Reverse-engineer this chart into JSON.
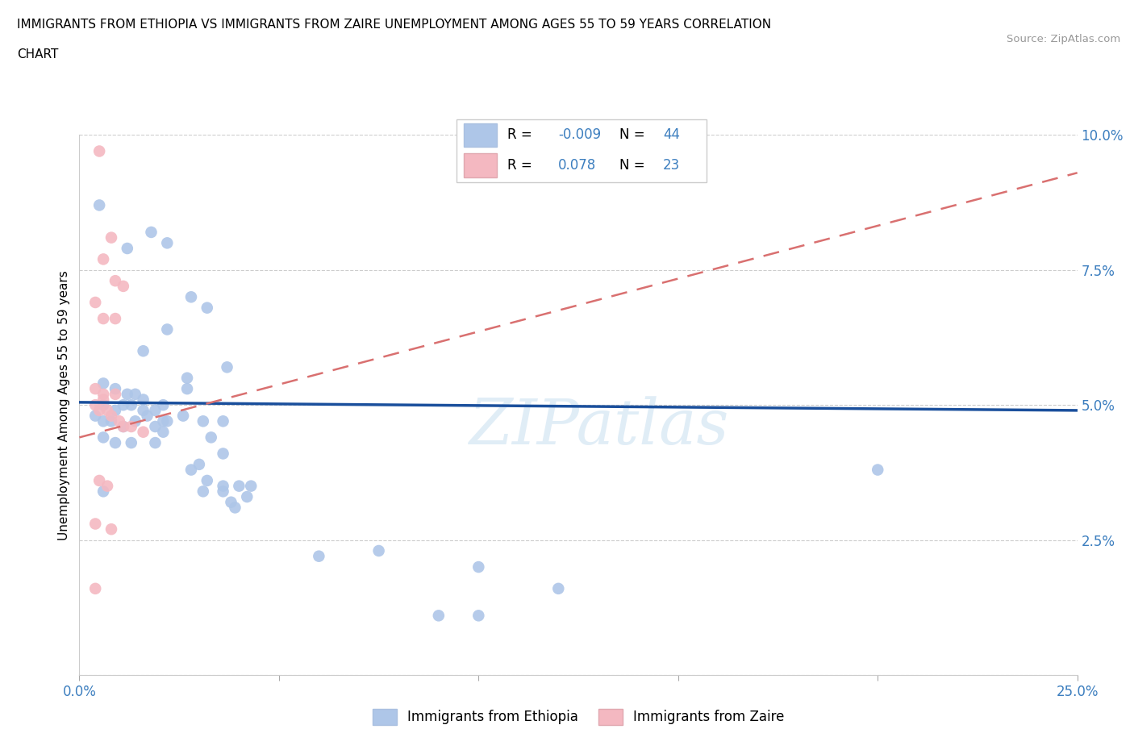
{
  "title_line1": "IMMIGRANTS FROM ETHIOPIA VS IMMIGRANTS FROM ZAIRE UNEMPLOYMENT AMONG AGES 55 TO 59 YEARS CORRELATION",
  "title_line2": "CHART",
  "source_text": "Source: ZipAtlas.com",
  "watermark": "ZIPatlas",
  "ylabel": "Unemployment Among Ages 55 to 59 years",
  "xlim": [
    0.0,
    0.25
  ],
  "ylim": [
    0.0,
    0.1
  ],
  "xticks": [
    0.0,
    0.05,
    0.1,
    0.15,
    0.2,
    0.25
  ],
  "yticks": [
    0.0,
    0.025,
    0.05,
    0.075,
    0.1
  ],
  "xticklabels": [
    "0.0%",
    "",
    "",
    "",
    "",
    "25.0%"
  ],
  "yticklabels": [
    "",
    "2.5%",
    "5.0%",
    "7.5%",
    "10.0%"
  ],
  "legend_labels": [
    "Immigrants from Ethiopia",
    "Immigrants from Zaire"
  ],
  "ethiopia_color": "#aec6e8",
  "zaire_color": "#f4b8c1",
  "ethiopia_line_color": "#1a4f9c",
  "zaire_line_color": "#d97070",
  "ethiopia_line": [
    [
      0.0,
      0.0505
    ],
    [
      0.25,
      0.049
    ]
  ],
  "zaire_line": [
    [
      0.0,
      0.044
    ],
    [
      0.25,
      0.093
    ]
  ],
  "ethiopia_points": [
    [
      0.005,
      0.087
    ],
    [
      0.012,
      0.079
    ],
    [
      0.018,
      0.082
    ],
    [
      0.022,
      0.08
    ],
    [
      0.028,
      0.07
    ],
    [
      0.032,
      0.068
    ],
    [
      0.022,
      0.064
    ],
    [
      0.016,
      0.06
    ],
    [
      0.037,
      0.057
    ],
    [
      0.027,
      0.055
    ],
    [
      0.006,
      0.054
    ],
    [
      0.009,
      0.053
    ],
    [
      0.012,
      0.052
    ],
    [
      0.014,
      0.052
    ],
    [
      0.027,
      0.053
    ],
    [
      0.016,
      0.051
    ],
    [
      0.006,
      0.05
    ],
    [
      0.009,
      0.049
    ],
    [
      0.011,
      0.05
    ],
    [
      0.013,
      0.05
    ],
    [
      0.016,
      0.049
    ],
    [
      0.019,
      0.049
    ],
    [
      0.021,
      0.05
    ],
    [
      0.004,
      0.048
    ],
    [
      0.006,
      0.047
    ],
    [
      0.008,
      0.047
    ],
    [
      0.011,
      0.046
    ],
    [
      0.014,
      0.047
    ],
    [
      0.017,
      0.048
    ],
    [
      0.021,
      0.047
    ],
    [
      0.026,
      0.048
    ],
    [
      0.031,
      0.047
    ],
    [
      0.036,
      0.047
    ],
    [
      0.022,
      0.047
    ],
    [
      0.019,
      0.046
    ],
    [
      0.021,
      0.045
    ],
    [
      0.006,
      0.044
    ],
    [
      0.009,
      0.043
    ],
    [
      0.013,
      0.043
    ],
    [
      0.019,
      0.043
    ],
    [
      0.033,
      0.044
    ],
    [
      0.036,
      0.041
    ],
    [
      0.028,
      0.038
    ],
    [
      0.03,
      0.039
    ],
    [
      0.2,
      0.038
    ],
    [
      0.032,
      0.036
    ],
    [
      0.036,
      0.035
    ],
    [
      0.006,
      0.034
    ],
    [
      0.031,
      0.034
    ],
    [
      0.036,
      0.034
    ],
    [
      0.04,
      0.035
    ],
    [
      0.043,
      0.035
    ],
    [
      0.038,
      0.032
    ],
    [
      0.042,
      0.033
    ],
    [
      0.039,
      0.031
    ],
    [
      0.06,
      0.022
    ],
    [
      0.075,
      0.023
    ],
    [
      0.1,
      0.02
    ],
    [
      0.12,
      0.016
    ],
    [
      0.09,
      0.011
    ],
    [
      0.1,
      0.011
    ]
  ],
  "zaire_points": [
    [
      0.005,
      0.097
    ],
    [
      0.008,
      0.081
    ],
    [
      0.006,
      0.077
    ],
    [
      0.009,
      0.073
    ],
    [
      0.011,
      0.072
    ],
    [
      0.004,
      0.069
    ],
    [
      0.006,
      0.066
    ],
    [
      0.009,
      0.066
    ],
    [
      0.004,
      0.053
    ],
    [
      0.006,
      0.052
    ],
    [
      0.009,
      0.052
    ],
    [
      0.006,
      0.051
    ],
    [
      0.004,
      0.05
    ],
    [
      0.005,
      0.049
    ],
    [
      0.007,
      0.049
    ],
    [
      0.008,
      0.048
    ],
    [
      0.01,
      0.047
    ],
    [
      0.011,
      0.046
    ],
    [
      0.013,
      0.046
    ],
    [
      0.016,
      0.045
    ],
    [
      0.005,
      0.036
    ],
    [
      0.007,
      0.035
    ],
    [
      0.004,
      0.028
    ],
    [
      0.008,
      0.027
    ],
    [
      0.004,
      0.016
    ]
  ]
}
